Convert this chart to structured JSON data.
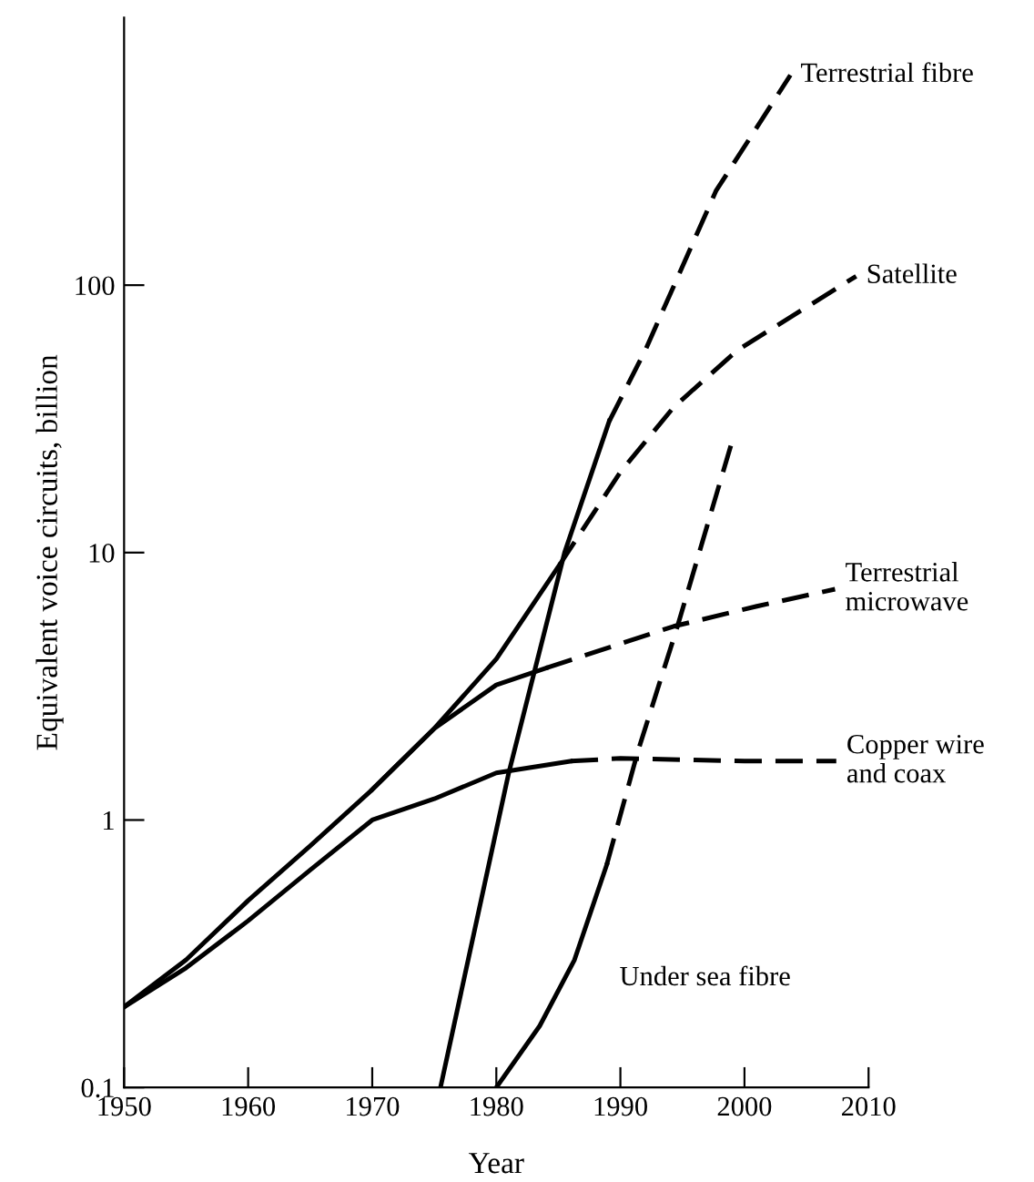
{
  "chart_data": {
    "type": "line",
    "xlabel": "Year",
    "ylabel": "Equivalent voice circuits, billion",
    "log": "y",
    "xlim": [
      1950,
      2010
    ],
    "xticks": [
      1950,
      1960,
      1970,
      1980,
      1990,
      2000,
      2010
    ],
    "ylim": [
      0.1,
      1000
    ],
    "yticks": [
      0.1,
      1,
      10,
      100
    ],
    "grid": false,
    "legend": false,
    "marker": "none",
    "series": [
      {
        "color": "#000000",
        "line_style": "solid",
        "x": [
          1950,
          1955,
          1960,
          1965,
          1970,
          1975,
          1980,
          1985.1
        ],
        "values": [
          0.2,
          0.3,
          0.5,
          0.8,
          1.3,
          2.2,
          4,
          9
        ]
      },
      {
        "name": "Satellite",
        "color": "#000000",
        "line_style": "dashed",
        "x": [
          1985.1,
          1990,
          1994.3,
          1999.4,
          2009
        ],
        "values": [
          9,
          20,
          35,
          57,
          108
        ]
      },
      {
        "color": "#000000",
        "line_style": "solid",
        "x": [
          1970,
          1975,
          1980,
          1984
        ],
        "values": [
          1.3,
          2.2,
          3.2,
          3.7
        ]
      },
      {
        "name": "Terrestrial\nmicrowave",
        "color": "#000000",
        "line_style": "dashed",
        "x": [
          1984,
          1994.3,
          2001,
          2007.3
        ],
        "values": [
          3.7,
          5.3,
          6.3,
          7.3
        ]
      },
      {
        "color": "#000000",
        "line_style": "solid",
        "x": [
          1950,
          1955,
          1960,
          1965,
          1970,
          1975,
          1980,
          1986
        ],
        "values": [
          0.2,
          0.28,
          0.42,
          0.65,
          1.0,
          1.2,
          1.5,
          1.66
        ]
      },
      {
        "name": "Copper wire\nand coax",
        "color": "#000000",
        "line_style": "dashed",
        "x": [
          1986,
          1990,
          2000,
          2007.4
        ],
        "values": [
          1.66,
          1.7,
          1.66,
          1.66
        ]
      },
      {
        "color": "#000000",
        "line_style": "solid",
        "x": [
          1975.5,
          1981,
          1985.5,
          1989.1
        ],
        "values": [
          0.1,
          1.5,
          10,
          31
        ]
      },
      {
        "name": "Terrestrial fibre",
        "color": "#000000",
        "line_style": "dashed",
        "x": [
          1989.1,
          1992,
          1997.7,
          2003.7
        ],
        "values": [
          31,
          57,
          225,
          610
        ]
      },
      {
        "name": "Under sea fibre",
        "color": "#000000",
        "line_style": "solid",
        "x": [
          1980,
          1983.5,
          1986.3,
          1988.9
        ],
        "values": [
          0.1,
          0.17,
          0.3,
          0.68
        ]
      },
      {
        "color": "#000000",
        "line_style": "dashed",
        "x": [
          1988.9,
          1991.4,
          1994.6,
          1999.1
        ],
        "values": [
          0.68,
          1.8,
          5.3,
          27
        ]
      }
    ]
  }
}
